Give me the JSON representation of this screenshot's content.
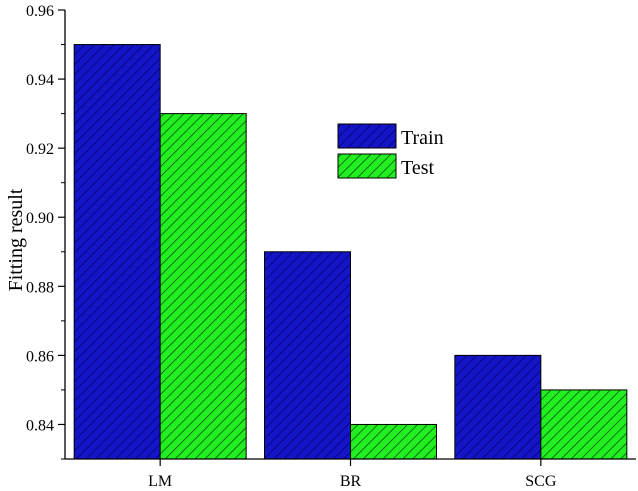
{
  "chart_data": {
    "type": "bar",
    "categories": [
      "LM",
      "BR",
      "SCG"
    ],
    "series": [
      {
        "name": "Train",
        "values": [
          0.95,
          0.89,
          0.86
        ],
        "color": "#1515c8",
        "hatch": "#000066"
      },
      {
        "name": "Test",
        "values": [
          0.93,
          0.84,
          0.85
        ],
        "color": "#22ee22",
        "hatch": "#004400"
      }
    ],
    "xlabel": "",
    "ylabel": "Fitting result",
    "ylim": [
      0.83,
      0.96
    ],
    "yticks": [
      0.84,
      0.86,
      0.88,
      0.9,
      0.92,
      0.94,
      0.96
    ],
    "ytick_labels": [
      "0.84",
      "0.86",
      "0.88",
      "0.90",
      "0.92",
      "0.94",
      "0.96"
    ],
    "grid": false,
    "legend_position": "top-right"
  }
}
